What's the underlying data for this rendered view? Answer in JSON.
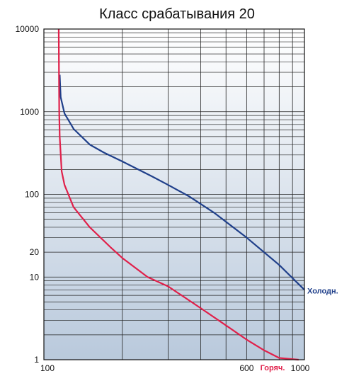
{
  "chart_data": {
    "type": "line",
    "title": "Класс срабатывания  20",
    "xlabel": "",
    "ylabel": "",
    "x_scale": "log",
    "y_scale": "log",
    "xlim": [
      100,
      1000
    ],
    "ylim": [
      1,
      10000
    ],
    "grid": true,
    "x_tick_labels": [
      "100",
      "600",
      "1000"
    ],
    "y_tick_labels": [
      "10000",
      "1000",
      "100",
      "20",
      "10",
      "1"
    ],
    "x_ticks": [
      100,
      600,
      1000
    ],
    "y_ticks": [
      10000,
      1000,
      100,
      20,
      10,
      1
    ],
    "series": [
      {
        "name": "Холодн.",
        "color": "#1f3f8a",
        "x": [
          115,
          116,
          120,
          130,
          150,
          170,
          200,
          260,
          300,
          360,
          450,
          600,
          800,
          1000
        ],
        "y": [
          2800,
          1500,
          950,
          620,
          400,
          320,
          250,
          165,
          130,
          95,
          60,
          30,
          14,
          7
        ]
      },
      {
        "name": "Горяч.",
        "color": "#e0204a",
        "x": [
          114,
          114.5,
          115,
          117,
          120,
          130,
          150,
          180,
          200,
          250,
          300,
          400,
          500,
          600,
          700,
          800,
          950
        ],
        "y": [
          10000,
          1000,
          500,
          190,
          130,
          70,
          40,
          23,
          17,
          10,
          7.7,
          4.2,
          2.6,
          1.75,
          1.3,
          1.05,
          1
        ]
      }
    ]
  }
}
